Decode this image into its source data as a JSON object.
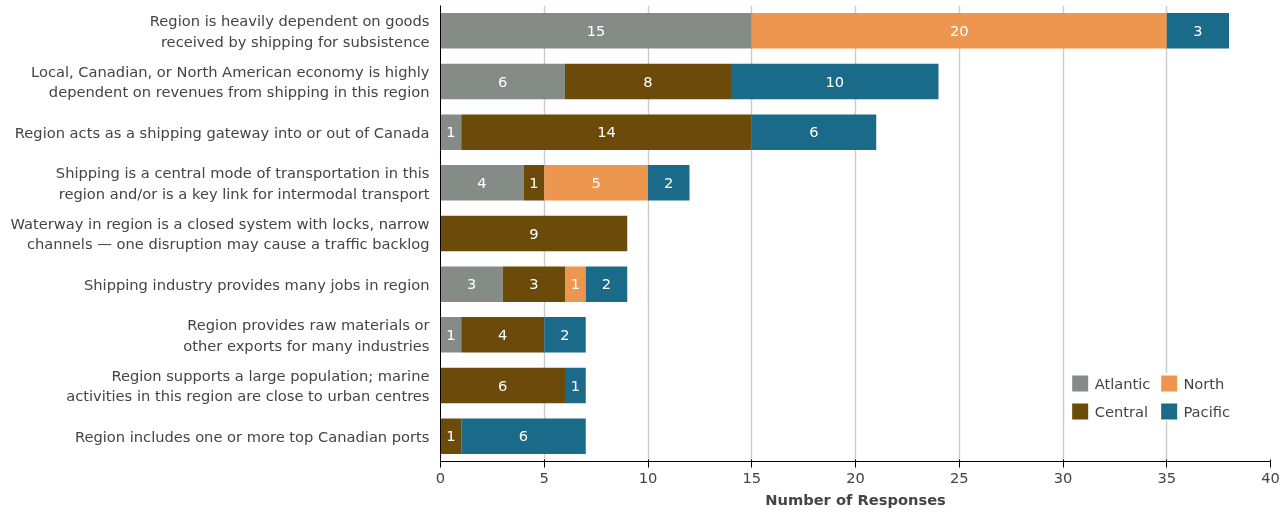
{
  "chart_data": {
    "type": "bar",
    "orientation": "horizontal",
    "stacked": true,
    "xlabel": "Number of Responses",
    "categories": [
      "Region is heavily dependent on goods\nreceived by shipping for subsistence",
      "Local, Canadian, or North American economy is highly\ndependent on revenues from shipping in this region",
      "Region acts as a shipping gateway into or out of Canada",
      "Shipping is a central mode of transportation in this\nregion and/or is a key link for intermodal transport",
      "Waterway in region is a closed system with locks, narrow\nchannels — one disruption may cause a traffic backlog",
      "Shipping industry provides many jobs in region",
      "Region provides raw materials or\nother exports for many industries",
      "Region supports a large population; marine\nactivities in this region are close to urban centres",
      "Region includes one or more top Canadian ports"
    ],
    "series": [
      {
        "name": "Atlantic",
        "color": "#858c88",
        "values": [
          15,
          6,
          1,
          4,
          null,
          3,
          1,
          null,
          null
        ]
      },
      {
        "name": "Central",
        "color": "#6b4a0a",
        "values": [
          null,
          8,
          14,
          1,
          9,
          3,
          4,
          6,
          1
        ]
      },
      {
        "name": "North",
        "color": "#ec9650",
        "values": [
          20,
          null,
          null,
          5,
          null,
          1,
          null,
          null,
          null
        ]
      },
      {
        "name": "Pacific",
        "color": "#1a6a8a",
        "values": [
          3,
          10,
          6,
          2,
          null,
          2,
          2,
          1,
          6
        ]
      }
    ],
    "xlim": [
      0,
      40
    ],
    "xticks": [
      0,
      5,
      10,
      15,
      20,
      25,
      30,
      35,
      40
    ],
    "grid": "x",
    "legend": "bottom right",
    "data_labels": true
  }
}
